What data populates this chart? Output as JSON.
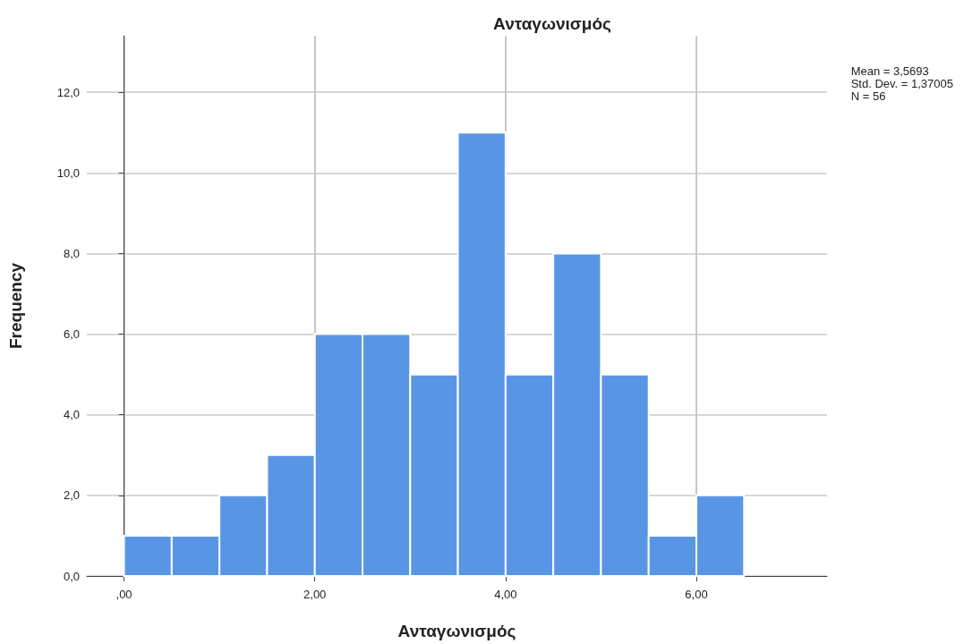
{
  "chart_data": {
    "type": "histogram",
    "title": "Ανταγωνισμός",
    "xlabel": "Ανταγωνισμός",
    "ylabel": "Frequency",
    "bins": [
      0,
      0.5,
      1,
      1.5,
      2,
      2.5,
      3,
      3.5,
      4,
      4.5,
      5,
      5.5,
      6,
      6.5
    ],
    "values": [
      1,
      1,
      2,
      3,
      6,
      6,
      5,
      11,
      5,
      8,
      5,
      1,
      2
    ],
    "color": "#5896e5",
    "xlim": [
      -0.39,
      7.37
    ],
    "xticks": [
      {
        "value": 0,
        "label": ",00"
      },
      {
        "value": 2,
        "label": "2,00"
      },
      {
        "value": 4,
        "label": "4,00"
      },
      {
        "value": 6,
        "label": "6,00"
      }
    ],
    "ylim": [
      0,
      13.4
    ],
    "yticks": [
      {
        "value": 0,
        "label": "0,0"
      },
      {
        "value": 2,
        "label": "2,0"
      },
      {
        "value": 4,
        "label": "4,0"
      },
      {
        "value": 6,
        "label": "6,0"
      },
      {
        "value": 8,
        "label": "8,0"
      },
      {
        "value": 10,
        "label": "10,0"
      },
      {
        "value": 12,
        "label": "12,0"
      }
    ],
    "grid": true,
    "annotations": [
      "Mean = 3,5693",
      "Std. Dev. = 1,37005",
      "N = 56"
    ]
  }
}
